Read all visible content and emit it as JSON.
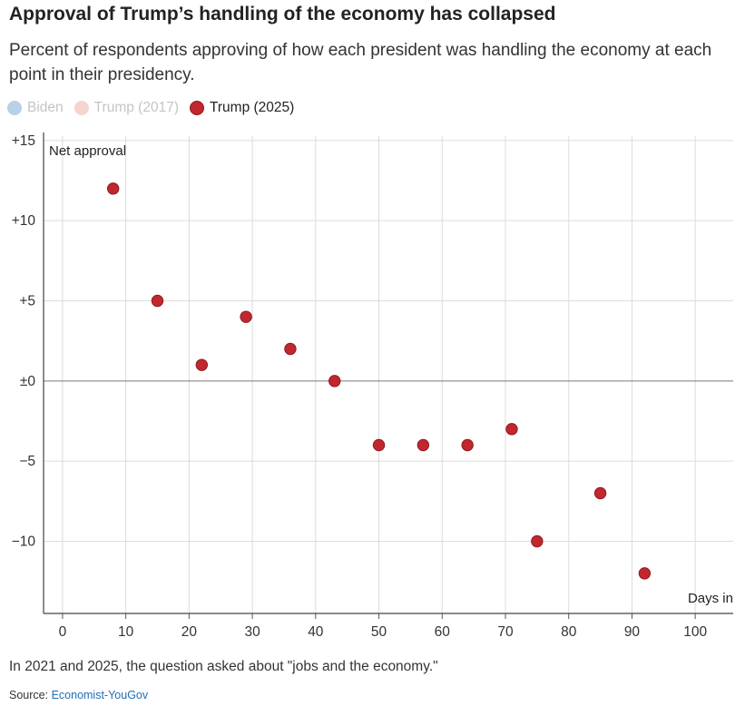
{
  "header": {
    "title": "Approval of Trump’s handling of the economy has collapsed",
    "subtitle": "Percent of respondents approving of how each president was handling the economy at each point in their presidency."
  },
  "legend": [
    {
      "label": "Biden",
      "color": "#b8d0e8",
      "text_color": "#c4c4c4"
    },
    {
      "label": "Trump (2017)",
      "color": "#f6d4cf",
      "text_color": "#c4c4c4"
    },
    {
      "label": "Trump (2025)",
      "color": "#c1272d",
      "text_color": "#222222"
    }
  ],
  "chart_data": {
    "type": "scatter",
    "title": "Approval of Trump’s handling of the economy has collapsed",
    "ylabel": "Net approval",
    "xlabel": "Days in",
    "xlim": [
      -3,
      106
    ],
    "ylim": [
      -14.5,
      15.5
    ],
    "x_ticks": [
      0,
      10,
      20,
      30,
      40,
      50,
      60,
      70,
      80,
      90,
      100
    ],
    "x_tick_labels": [
      "0",
      "10",
      "20",
      "30",
      "40",
      "50",
      "60",
      "70",
      "80",
      "90",
      "100"
    ],
    "y_ticks": [
      15,
      10,
      5,
      0,
      -5,
      -10
    ],
    "y_tick_labels": [
      "+15",
      "+10",
      "+5",
      "±0",
      "−5",
      "−10"
    ],
    "grid": true,
    "series": [
      {
        "name": "Trump (2025)",
        "color": "#c1272d",
        "x": [
          8,
          15,
          22,
          29,
          36,
          43,
          50,
          57,
          64,
          71,
          75,
          85,
          92
        ],
        "y": [
          12,
          5,
          1,
          4,
          2,
          0,
          -4,
          -4,
          -4,
          -3,
          -10,
          -7,
          -12
        ]
      }
    ]
  },
  "footer": {
    "note": "In 2021 and 2025, the question asked about \"jobs and the economy.\"",
    "source_label": "Source:",
    "source_link": "Economist-YouGov"
  }
}
